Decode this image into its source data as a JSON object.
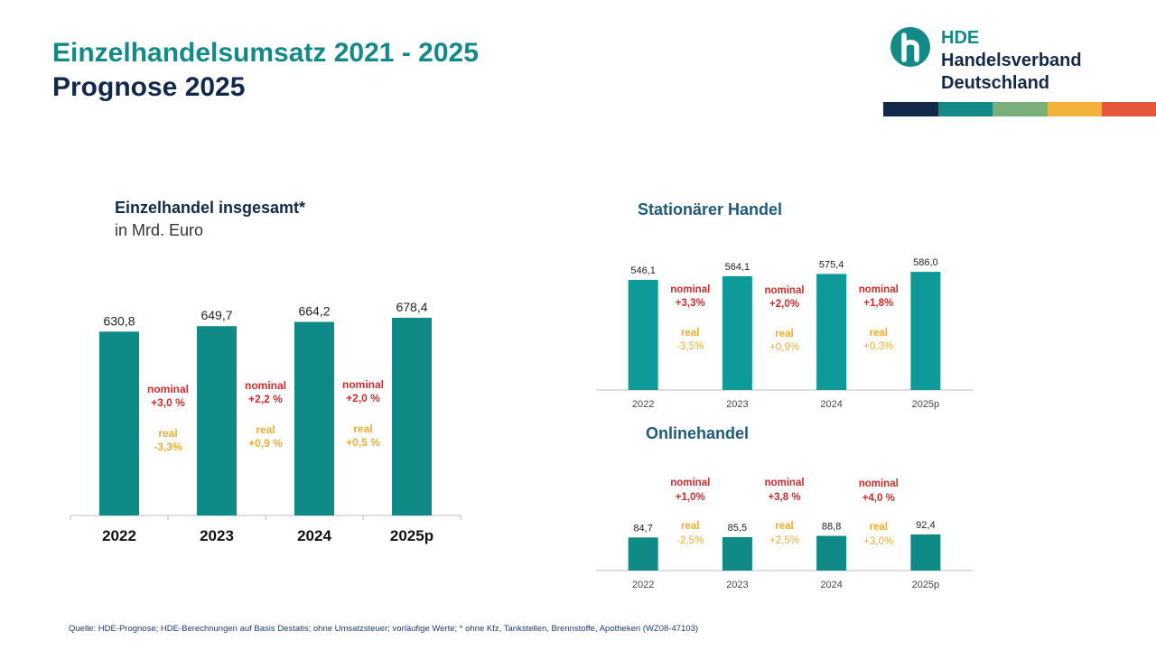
{
  "header": {
    "title_line1": "Einzelhandelsumsatz 2021 - 2025",
    "title_line2": "Prognose 2025"
  },
  "logo": {
    "icon": "hde-h-icon",
    "line1": "HDE",
    "line2": "Handelsverband",
    "line3": "Deutschland",
    "stripe_colors": [
      "#13294b",
      "#138a87",
      "#7aae7a",
      "#f2b33d",
      "#e5573b"
    ]
  },
  "colors": {
    "bar_main": "#0f8a86",
    "bar_secondary": "#0d9a98",
    "nominal": "#d42a2a",
    "real": "#f0ad2d",
    "text": "#222222"
  },
  "chart_data": [
    {
      "type": "bar",
      "title": "Einzelhandel insgesamt*",
      "subtitle": "in Mrd. Euro",
      "categories": [
        "2022",
        "2023",
        "2024",
        "2025p"
      ],
      "values": [
        630.8,
        649.7,
        664.2,
        678.4
      ],
      "value_labels": [
        "630,8",
        "649,7",
        "664,2",
        "678,4"
      ],
      "ylim": [
        0,
        700
      ],
      "changes": [
        {
          "nominal_label": "nominal",
          "nominal": "+3,0 %",
          "real_label": "real",
          "real": "-3,3%"
        },
        {
          "nominal_label": "nominal",
          "nominal": "+2,2 %",
          "real_label": "real",
          "real": "+0,9 %"
        },
        {
          "nominal_label": "nominal",
          "nominal": "+2,0 %",
          "real_label": "real",
          "real": "+0,5 %"
        }
      ]
    },
    {
      "type": "bar",
      "title": "Stationärer Handel",
      "categories": [
        "2022",
        "2023",
        "2024",
        "2025p"
      ],
      "values": [
        546.1,
        564.1,
        575.4,
        586.0
      ],
      "value_labels": [
        "546,1",
        "564,1",
        "575,4",
        "586,0"
      ],
      "ylim": [
        0,
        640
      ],
      "changes": [
        {
          "nominal_label": "nominal",
          "nominal": "+3,3%",
          "real_label": "real",
          "real": "-3,5%"
        },
        {
          "nominal_label": "nominal",
          "nominal": "+2,0%",
          "real_label": "real",
          "real": "+0,9%"
        },
        {
          "nominal_label": "nominal",
          "nominal": "+1,8%",
          "real_label": "real",
          "real": "+0,3%"
        }
      ]
    },
    {
      "type": "bar",
      "title": "Onlinehandel",
      "categories": [
        "2022",
        "2023",
        "2024",
        "2025p"
      ],
      "values": [
        84.7,
        85.5,
        88.8,
        92.4
      ],
      "value_labels": [
        "84,7",
        "85,5",
        "88,8",
        "92,4"
      ],
      "ylim": [
        0,
        92.4
      ],
      "changes": [
        {
          "nominal_label": "nominal",
          "nominal": "+1,0%",
          "real_label": "real",
          "real": "-2,5%"
        },
        {
          "nominal_label": "nominal",
          "nominal": "+3,8 %",
          "real_label": "real",
          "real": "+2,5%"
        },
        {
          "nominal_label": "nominal",
          "nominal": "+4,0 %",
          "real_label": "real",
          "real": "+3,0%"
        }
      ]
    }
  ],
  "footer": {
    "source": "Quelle: HDE-Prognose; HDE-Berechnungen auf Basis Destatis; ohne Umsatzsteuer; vorläufige Werte; * ohne Kfz, Tankstellen, Brennstoffe, Apotheken (WZ08-47103)"
  }
}
